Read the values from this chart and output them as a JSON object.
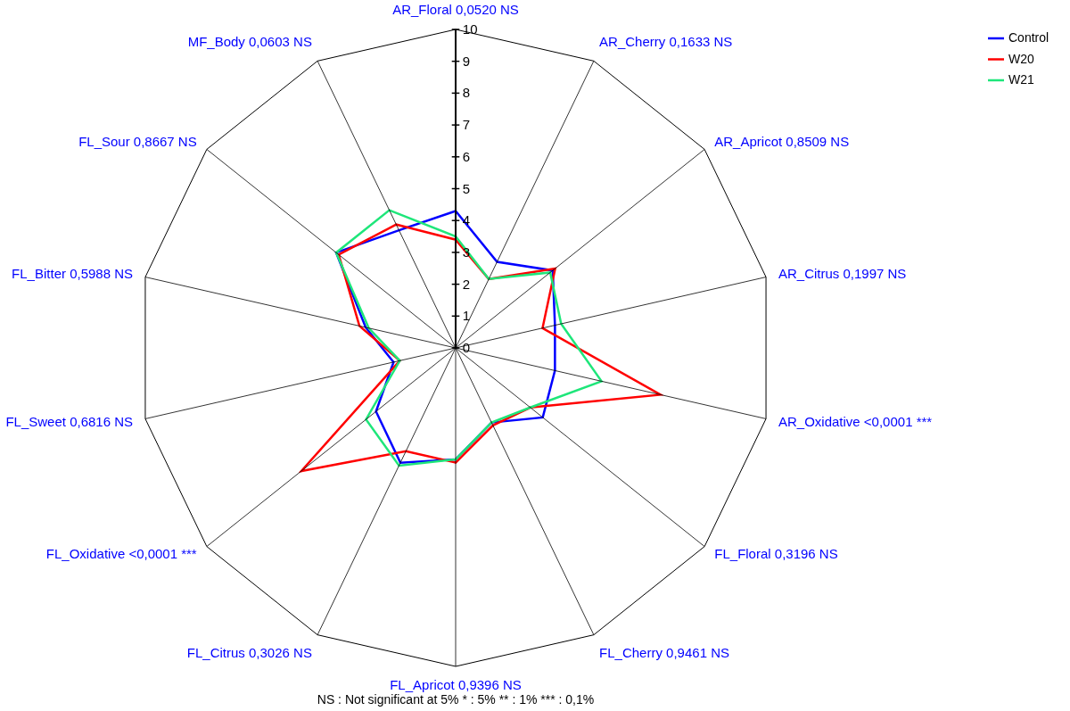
{
  "chart_data": {
    "type": "radar",
    "categories": [
      "AR_Floral 0,0520 NS",
      "AR_Cherry 0,1633 NS",
      "AR_Apricot 0,8509 NS",
      "AR_Citrus 0,1997 NS",
      "AR_Oxidative <0,0001 ***",
      "FL_Floral 0,3196 NS",
      "FL_Cherry 0,9461 NS",
      "FL_Apricot 0,9396 NS",
      "FL_Citrus 0,3026 NS",
      "FL_Oxidative <0,0001 ***",
      "FL_Sweet 0,6816 NS",
      "FL_Bitter 0,5988 NS",
      "FL_Sour 0,8667 NS",
      "MF_Body 0,0603 NS"
    ],
    "series": [
      {
        "name": "Control",
        "color": "#0000ff",
        "values": [
          4.3,
          3.0,
          3.9,
          3.2,
          3.2,
          3.5,
          2.6,
          3.5,
          4.0,
          3.2,
          2.0,
          2.9,
          4.8,
          4.1
        ]
      },
      {
        "name": "W20",
        "color": "#ff0000",
        "values": [
          3.4,
          2.4,
          4.0,
          2.8,
          6.6,
          3.0,
          2.7,
          3.6,
          3.6,
          6.2,
          1.8,
          3.1,
          4.7,
          4.3
        ]
      },
      {
        "name": "W21",
        "color": "#1ee67a",
        "values": [
          3.5,
          2.4,
          3.8,
          3.4,
          4.7,
          3.0,
          2.6,
          3.5,
          4.1,
          3.6,
          1.8,
          2.8,
          4.8,
          4.8
        ]
      }
    ],
    "ylim": [
      0,
      10
    ],
    "yticks": [
      0,
      1,
      2,
      3,
      4,
      5,
      6,
      7,
      8,
      9,
      10
    ],
    "legend": "top right",
    "annotations": [
      "NS : Not significant at 5%  * : 5%  ** : 1%  *** : 0,1%"
    ]
  }
}
